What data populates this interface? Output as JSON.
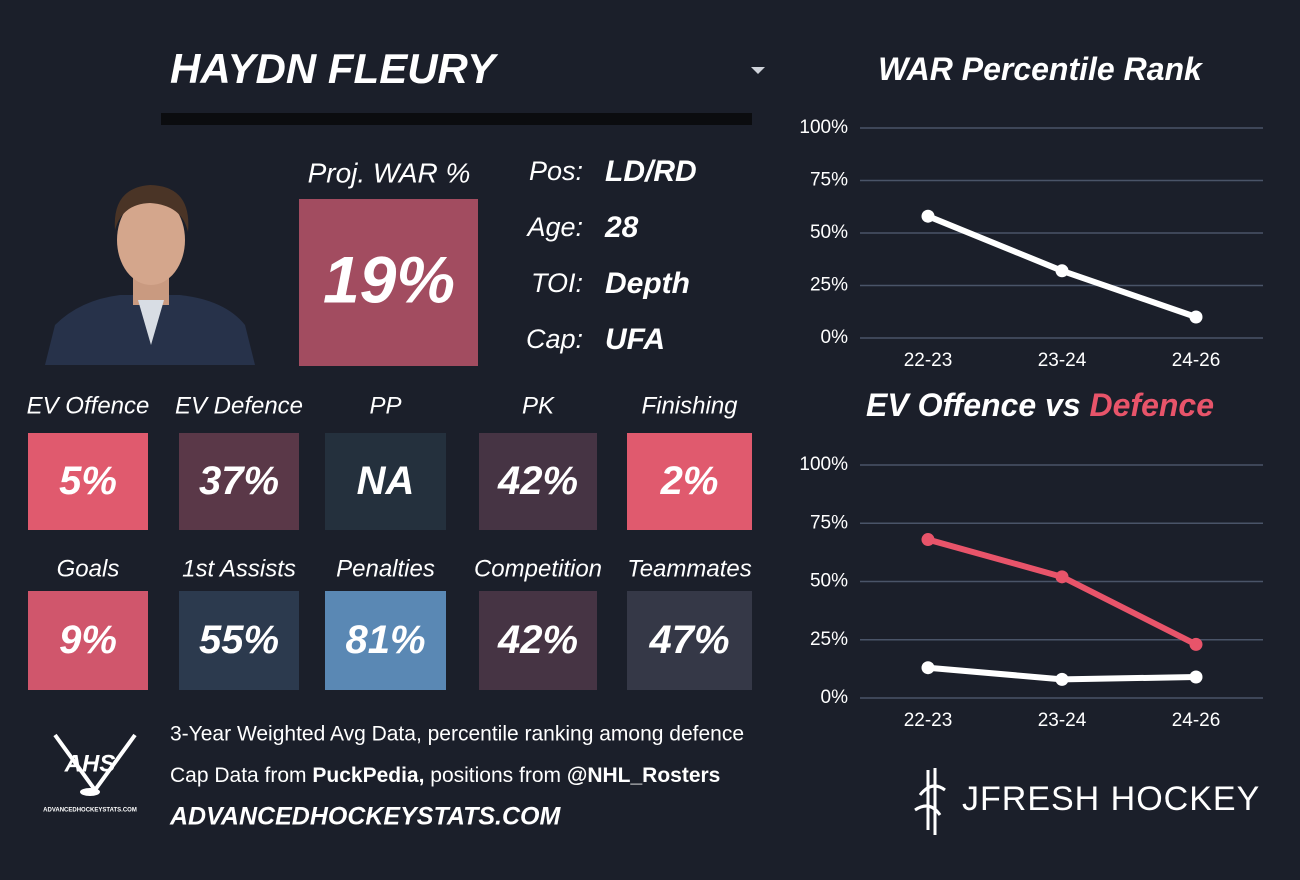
{
  "header": {
    "name": "HAYDN FLEURY"
  },
  "proj_war": {
    "label": "Proj. WAR %",
    "value": "19%",
    "color": "#a24c60"
  },
  "info": [
    {
      "label": "Pos:",
      "value": "LD/RD"
    },
    {
      "label": "Age:",
      "value": 28
    },
    {
      "label": "TOI:",
      "value": "Depth"
    },
    {
      "label": "Cap:",
      "value": "UFA"
    }
  ],
  "tiles": [
    {
      "label": "EV Offence",
      "value": "5%",
      "color": "#e05a6e"
    },
    {
      "label": "EV Defence",
      "value": "37%",
      "color": "#5a3848"
    },
    {
      "label": "PP",
      "value": "NA",
      "color": "#24303d"
    },
    {
      "label": "PK",
      "value": "42%",
      "color": "#463444"
    },
    {
      "label": "Finishing",
      "value": "2%",
      "color": "#e05a6e"
    },
    {
      "label": "Goals",
      "value": "9%",
      "color": "#d0566c"
    },
    {
      "label": "1st Assists",
      "value": "55%",
      "color": "#2c3a4e"
    },
    {
      "label": "Penalties",
      "value": "81%",
      "color": "#5a88b4"
    },
    {
      "label": "Competition",
      "value": "42%",
      "color": "#463444"
    },
    {
      "label": "Teammates",
      "value": "47%",
      "color": "#353847"
    }
  ],
  "footer": {
    "line1": "3-Year Weighted Avg Data, percentile ranking among defence",
    "line2": [
      "Cap Data from ",
      "PuckPedia,",
      " positions from ",
      "@NHL_Rosters"
    ],
    "site": "ADVANCEDHOCKEYSTATS.COM",
    "logo_text": "AHS",
    "logo_sub": "ADVANCEDHOCKEYSTATS.COM",
    "brand": "JFRESH HOCKEY"
  },
  "chart_data": [
    {
      "type": "line",
      "title_parts": [
        {
          "text": "WAR Percentile Rank",
          "color": "#ffffff"
        }
      ],
      "categories": [
        "22-23",
        "23-24",
        "24-26"
      ],
      "series": [
        {
          "color": "#ffffff",
          "values": [
            58,
            32,
            10
          ]
        }
      ],
      "ylim": [
        0,
        100
      ],
      "yticks": [
        {
          "value": 0,
          "label": "0%"
        },
        {
          "value": 25,
          "label": "25%"
        },
        {
          "value": 50,
          "label": "50%"
        },
        {
          "value": 75,
          "label": "75%"
        },
        {
          "value": 100,
          "label": "100%"
        }
      ],
      "grid": true
    },
    {
      "type": "line",
      "title_parts": [
        {
          "text": "EV Offence vs ",
          "color": "#ffffff"
        },
        {
          "text": "Defence",
          "color": "#e8546a"
        }
      ],
      "categories": [
        "22-23",
        "23-24",
        "24-26"
      ],
      "series": [
        {
          "color": "#ffffff",
          "values": [
            13,
            8,
            9
          ]
        },
        {
          "color": "#e8546a",
          "values": [
            68,
            52,
            23
          ]
        }
      ],
      "ylim": [
        0,
        100
      ],
      "yticks": [
        {
          "value": 0,
          "label": "0%"
        },
        {
          "value": 25,
          "label": "25%"
        },
        {
          "value": 50,
          "label": "50%"
        },
        {
          "value": 75,
          "label": "75%"
        },
        {
          "value": 100,
          "label": "100%"
        }
      ],
      "grid": true
    }
  ]
}
